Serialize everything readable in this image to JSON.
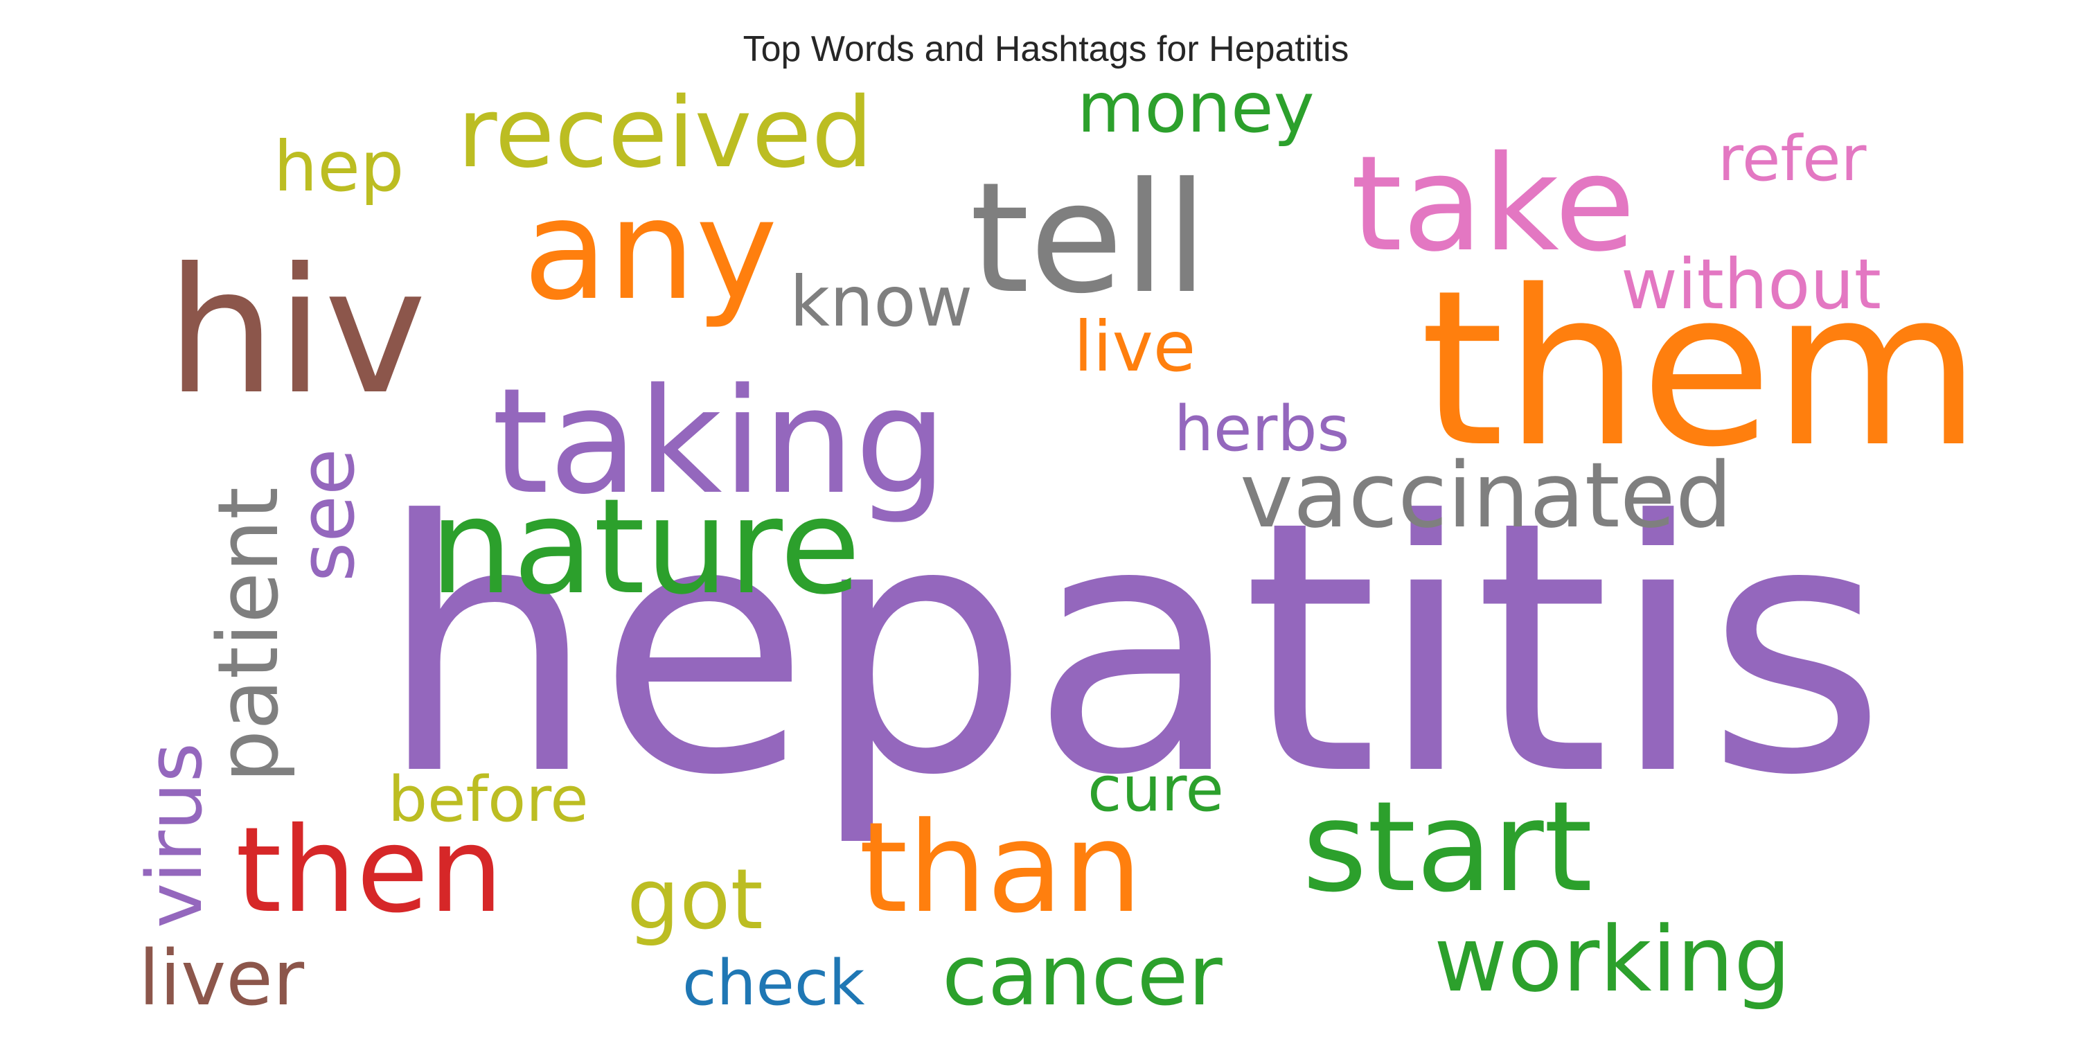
{
  "title": "Top Words and Hashtags for Hepatitis",
  "words": [
    {
      "text": "hepatitis",
      "color": "#9467bd",
      "orientation": "horizontal"
    },
    {
      "text": "them",
      "color": "#ff7f0e",
      "orientation": "horizontal"
    },
    {
      "text": "hiv",
      "color": "#8c564b",
      "orientation": "horizontal"
    },
    {
      "text": "tell",
      "color": "#7f7f7f",
      "orientation": "horizontal"
    },
    {
      "text": "taking",
      "color": "#9467bd",
      "orientation": "horizontal"
    },
    {
      "text": "any",
      "color": "#ff7f0e",
      "orientation": "horizontal"
    },
    {
      "text": "take",
      "color": "#e377c2",
      "orientation": "horizontal"
    },
    {
      "text": "nature",
      "color": "#2ca02c",
      "orientation": "horizontal"
    },
    {
      "text": "than",
      "color": "#ff7f0e",
      "orientation": "horizontal"
    },
    {
      "text": "start",
      "color": "#2ca02c",
      "orientation": "horizontal"
    },
    {
      "text": "then",
      "color": "#d62728",
      "orientation": "horizontal"
    },
    {
      "text": "received",
      "color": "#bcbd22",
      "orientation": "horizontal"
    },
    {
      "text": "vaccinated",
      "color": "#7f7f7f",
      "orientation": "horizontal"
    },
    {
      "text": "working",
      "color": "#2ca02c",
      "orientation": "horizontal"
    },
    {
      "text": "patient",
      "color": "#7f7f7f",
      "orientation": "vertical"
    },
    {
      "text": "got",
      "color": "#bcbd22",
      "orientation": "horizontal"
    },
    {
      "text": "cancer",
      "color": "#2ca02c",
      "orientation": "horizontal"
    },
    {
      "text": "virus",
      "color": "#9467bd",
      "orientation": "vertical"
    },
    {
      "text": "liver",
      "color": "#8c564b",
      "orientation": "horizontal"
    },
    {
      "text": "see",
      "color": "#9467bd",
      "orientation": "vertical"
    },
    {
      "text": "without",
      "color": "#e377c2",
      "orientation": "horizontal"
    },
    {
      "text": "money",
      "color": "#2ca02c",
      "orientation": "horizontal"
    },
    {
      "text": "live",
      "color": "#ff7f0e",
      "orientation": "horizontal"
    },
    {
      "text": "know",
      "color": "#7f7f7f",
      "orientation": "horizontal"
    },
    {
      "text": "hep",
      "color": "#bcbd22",
      "orientation": "horizontal"
    },
    {
      "text": "refer",
      "color": "#e377c2",
      "orientation": "horizontal"
    },
    {
      "text": "herbs",
      "color": "#9467bd",
      "orientation": "horizontal"
    },
    {
      "text": "cure",
      "color": "#2ca02c",
      "orientation": "horizontal"
    },
    {
      "text": "before",
      "color": "#bcbd22",
      "orientation": "horizontal"
    },
    {
      "text": "check",
      "color": "#1f77b4",
      "orientation": "horizontal"
    }
  ]
}
